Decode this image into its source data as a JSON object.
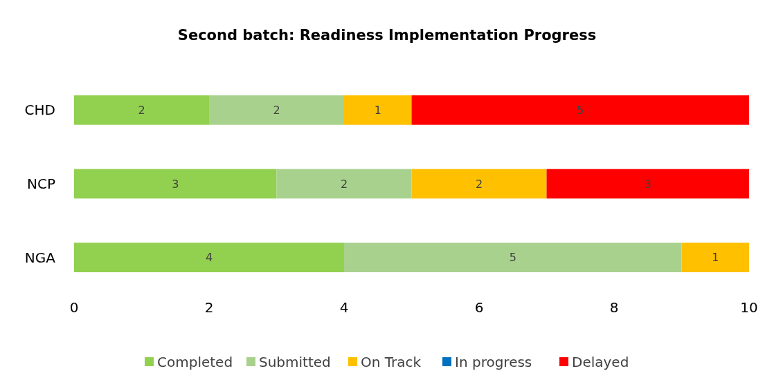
{
  "chart_data": {
    "type": "bar",
    "orientation": "horizontal",
    "stacked": true,
    "title": "Second batch: Readiness Implementation Progress",
    "categories": [
      "CHD",
      "NCP",
      "NGA"
    ],
    "series": [
      {
        "name": "Completed",
        "color": "#92d050",
        "values": [
          2,
          3,
          4
        ],
        "value_labels": [
          "2",
          "3",
          "4"
        ]
      },
      {
        "name": "Submitted",
        "color": "#a9d18e",
        "values": [
          2,
          2,
          5
        ],
        "value_labels": [
          "2",
          "2",
          "5"
        ]
      },
      {
        "name": "On Track",
        "color": "#ffc000",
        "values": [
          1,
          2,
          1
        ],
        "value_labels": [
          "1",
          "2",
          "1"
        ]
      },
      {
        "name": "In progress",
        "color": "#0070c0",
        "values": [
          null,
          null,
          null
        ],
        "value_labels": [
          null,
          null,
          null
        ]
      },
      {
        "name": "Delayed",
        "color": "#ff0000",
        "values": [
          5,
          3,
          null
        ],
        "value_labels": [
          "5",
          "3",
          null
        ]
      }
    ],
    "xlim": [
      0,
      10
    ],
    "xticks": [
      0,
      2,
      4,
      6,
      8,
      10
    ],
    "grid": false,
    "legend": "bottom"
  }
}
